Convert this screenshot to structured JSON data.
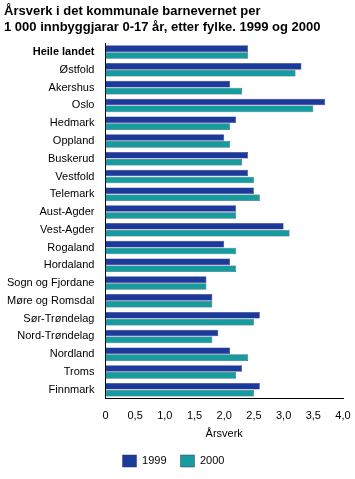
{
  "chart_data": {
    "type": "bar",
    "orientation": "horizontal",
    "title": [
      "Årsverk i det kommunale barnevernet per",
      "1 000 innbyggjarar 0-17 år, etter fylke. 1999 og 2000"
    ],
    "x_label": "Årsverk",
    "categories": [
      "Heile landet",
      "Østfold",
      "Akershus",
      "Oslo",
      "Hedmark",
      "Oppland",
      "Buskerud",
      "Vestfold",
      "Telemark",
      "Aust-Agder",
      "Vest-Agder",
      "Rogaland",
      "Hordaland",
      "Sogn og Fjordane",
      "Møre og Romsdal",
      "Sør-Trøndelag",
      "Nord-Trøndelag",
      "Nordland",
      "Troms",
      "Finnmark"
    ],
    "series": [
      {
        "name": "1999",
        "color": "#1b3a9c",
        "values": [
          2.4,
          3.3,
          2.1,
          3.7,
          2.2,
          2.0,
          2.4,
          2.4,
          2.5,
          2.2,
          3.0,
          2.0,
          2.1,
          1.7,
          1.8,
          2.6,
          1.9,
          2.1,
          2.3,
          2.6
        ]
      },
      {
        "name": "2000",
        "color": "#169c9c",
        "values": [
          2.4,
          3.2,
          2.3,
          3.5,
          2.1,
          2.1,
          2.3,
          2.5,
          2.6,
          2.2,
          3.1,
          2.2,
          2.2,
          1.7,
          1.8,
          2.5,
          1.8,
          2.4,
          2.2,
          2.5
        ]
      }
    ],
    "xlim": [
      0,
      4
    ],
    "xticks": [
      0,
      {
        "value": 0.5,
        "label": "0,5"
      },
      {
        "value": 1,
        "label": "1,0"
      },
      {
        "value": 1.5,
        "label": "1,5"
      },
      {
        "value": 2,
        "label": "2,0"
      },
      {
        "value": 2.5,
        "label": "2,5"
      },
      {
        "value": 3,
        "label": "3,0"
      },
      {
        "value": 3.5,
        "label": "3,5"
      },
      {
        "value": 4,
        "label": "4,0"
      }
    ],
    "grid": false,
    "legend": "bottom"
  }
}
